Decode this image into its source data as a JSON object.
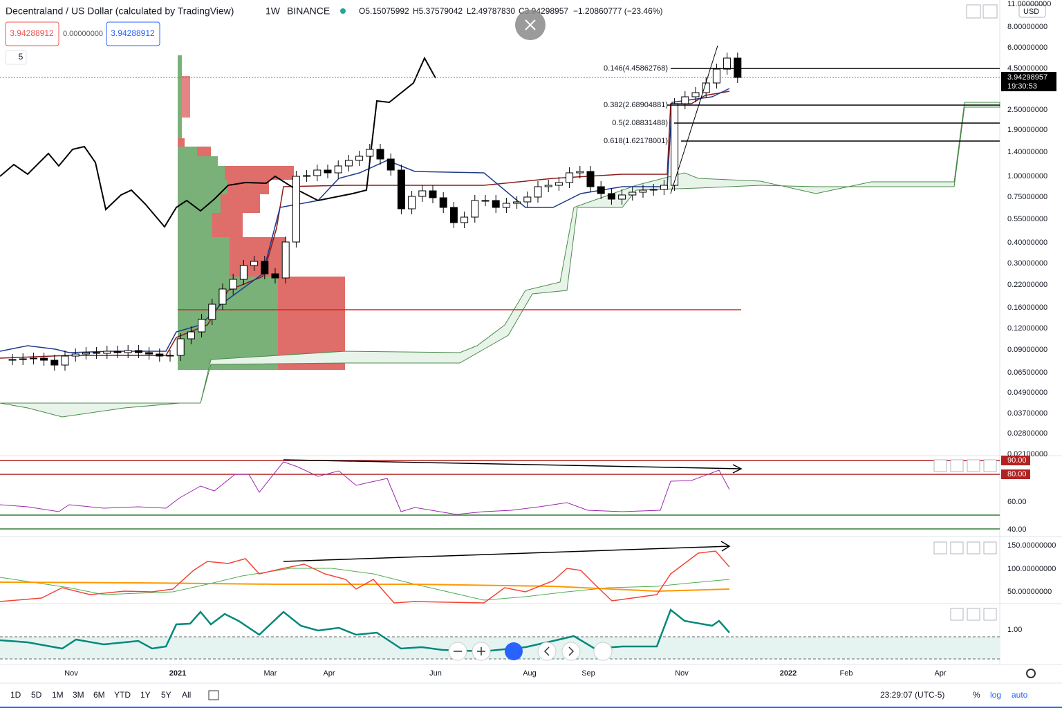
{
  "header": {
    "symbol": "Decentraland / US Dollar (calculated by TradingView)",
    "interval": "1W",
    "exchange": "BINANCE",
    "open": "O5.15075992",
    "high": "H5.37579042",
    "low": "L2.49787830",
    "close": "C3.94298957",
    "change": "−1.20860777 (−23.46%)"
  },
  "quote": {
    "bid": "3.94288912",
    "spread": "0.00000000",
    "ask": "3.94288912"
  },
  "indicator_count": "5",
  "price_axis": {
    "currency": "USD",
    "labels": [
      "11.00000000",
      "8.00000000",
      "6.00000000",
      "4.50000000",
      "2.50000000",
      "1.90000000",
      "1.40000000",
      "1.00000000",
      "0.75000000",
      "0.55000000",
      "0.40000000",
      "0.30000000",
      "0.22000000",
      "0.16000000",
      "0.12000000",
      "0.09000000",
      "0.06500000",
      "0.04900000",
      "0.03700000",
      "0.02800000",
      "0.02100000"
    ],
    "current_price": "3.94298957",
    "countdown": "19:30:53"
  },
  "fib_levels": [
    "0.146(4.45862768)",
    "0.382(2.68904881)",
    "0.5(2.08831488)",
    "0.618(1.62178001)"
  ],
  "rsi_axis": [
    "90.00",
    "80.00",
    "60.00",
    "40.00"
  ],
  "pane2_axis": [
    "150.00000000",
    "100.00000000",
    "50.00000000"
  ],
  "pane3_axis": [
    "1.00"
  ],
  "time_axis": [
    "Nov",
    "2021",
    "Mar",
    "Apr",
    "Jun",
    "Aug",
    "Sep",
    "Nov",
    "2022",
    "Feb",
    "Apr"
  ],
  "bottom_bar": {
    "ranges": [
      "1D",
      "5D",
      "1M",
      "3M",
      "6M",
      "YTD",
      "1Y",
      "5Y",
      "All"
    ],
    "clock": "23:29:07 (UTC-5)",
    "percent": "%",
    "log": "log",
    "auto": "auto"
  }
}
